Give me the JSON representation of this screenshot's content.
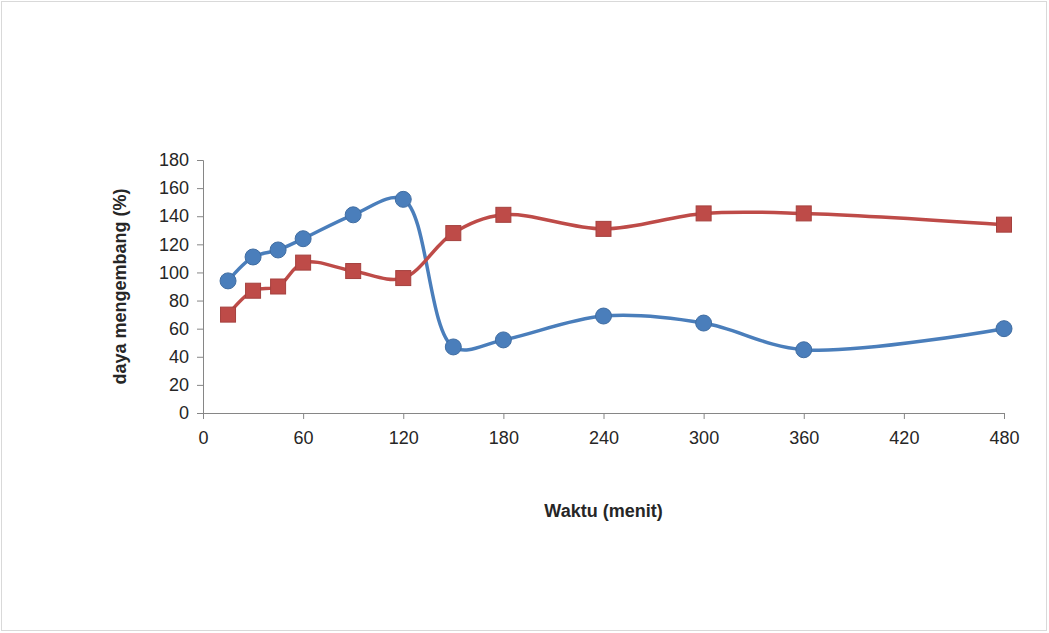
{
  "chart_data": {
    "type": "line",
    "x_label": "Waktu (menit)",
    "y_label": "daya mengembang (%)",
    "x": [
      15,
      30,
      45,
      60,
      90,
      120,
      150,
      180,
      240,
      300,
      360,
      480
    ],
    "series": [
      {
        "color": "#4a7ebb",
        "marker": "circle",
        "line_style": "smooth",
        "values": [
          94,
          111,
          116,
          124,
          141,
          152,
          47,
          52,
          69,
          64,
          45,
          60
        ]
      },
      {
        "color": "#be4b48",
        "marker": "square",
        "line_style": "smooth",
        "values": [
          70,
          87,
          90,
          107,
          101,
          96,
          128,
          141,
          131,
          142,
          142,
          134
        ]
      }
    ],
    "xlim": [
      0,
      480
    ],
    "xticks": [
      0,
      60,
      120,
      180,
      240,
      300,
      360,
      420,
      480
    ],
    "ylim": [
      0,
      180
    ],
    "yticks": [
      0,
      20,
      40,
      60,
      80,
      100,
      120,
      140,
      160,
      180
    ],
    "grid": false
  }
}
